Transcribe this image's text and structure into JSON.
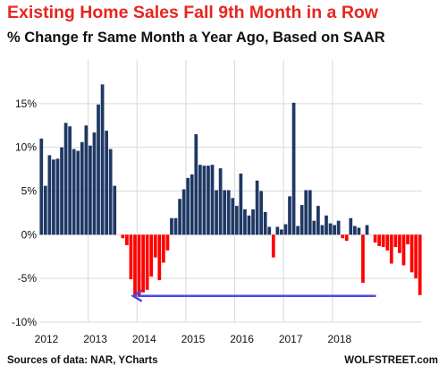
{
  "title": "Existing Home Sales Fall 9th Month in a Row",
  "subtitle": "% Change fr Same Month a Year Ago, Based on SAAR",
  "source": "Sources of data: NAR, YCharts",
  "watermark": "WOLFSTREET.com",
  "colors": {
    "positive": "#1f3864",
    "negative": "#ff0000",
    "arrow": "#4a4ae0",
    "grid": "#d9d9d9",
    "text": "#111111"
  },
  "chart_data": {
    "type": "bar",
    "title": "Existing Home Sales Fall 9th Month in a Row",
    "subtitle": "% Change fr Same Month a Year Ago, Based on SAAR",
    "xlabel": "",
    "ylabel": "",
    "ylim": [
      -10,
      20
    ],
    "yticks": [
      {
        "value": 15,
        "label": "15%"
      },
      {
        "value": 10,
        "label": "10%"
      },
      {
        "value": 5,
        "label": "5%"
      },
      {
        "value": 0,
        "label": "0%"
      },
      {
        "value": -5,
        "label": "-5%"
      },
      {
        "value": -10,
        "label": "-10%"
      }
    ],
    "xticks": [
      "2012",
      "2013",
      "2014",
      "2015",
      "2016",
      "2017",
      "2018"
    ],
    "start": "2012-01",
    "grid": true,
    "values": [
      11.0,
      5.6,
      9.1,
      8.6,
      8.7,
      10.0,
      12.8,
      12.4,
      9.8,
      9.6,
      10.6,
      12.5,
      10.2,
      11.7,
      14.9,
      17.2,
      11.9,
      9.8,
      5.6,
      0.0,
      -0.4,
      -1.2,
      -5.1,
      -7.2,
      -7.1,
      -6.6,
      -6.3,
      -4.8,
      -2.6,
      -5.2,
      -3.2,
      -1.8,
      1.9,
      1.9,
      4.1,
      5.2,
      6.5,
      6.9,
      11.5,
      8.0,
      7.9,
      7.9,
      8.0,
      5.1,
      7.6,
      5.1,
      5.1,
      4.2,
      3.3,
      7.0,
      2.9,
      2.2,
      2.9,
      6.2,
      5.0,
      2.6,
      0.9,
      -2.6,
      0.9,
      0.6,
      1.2,
      4.4,
      15.1,
      1.0,
      3.4,
      5.1,
      5.1,
      1.6,
      3.3,
      1.1,
      2.2,
      1.3,
      1.1,
      1.6,
      -0.4,
      -0.7,
      1.9,
      1.0,
      0.8,
      -5.5,
      1.1,
      0.0,
      -0.9,
      -1.3,
      -1.4,
      -1.8,
      -3.3,
      -1.4,
      -2.1,
      -3.5,
      -1.1,
      -4.3,
      -5.0,
      -6.9
    ],
    "annotations": [
      {
        "type": "arrow",
        "from": {
          "x": "2018-11",
          "y": -7.0
        },
        "to": {
          "x": "2013-11",
          "y": -7.0
        }
      }
    ]
  }
}
